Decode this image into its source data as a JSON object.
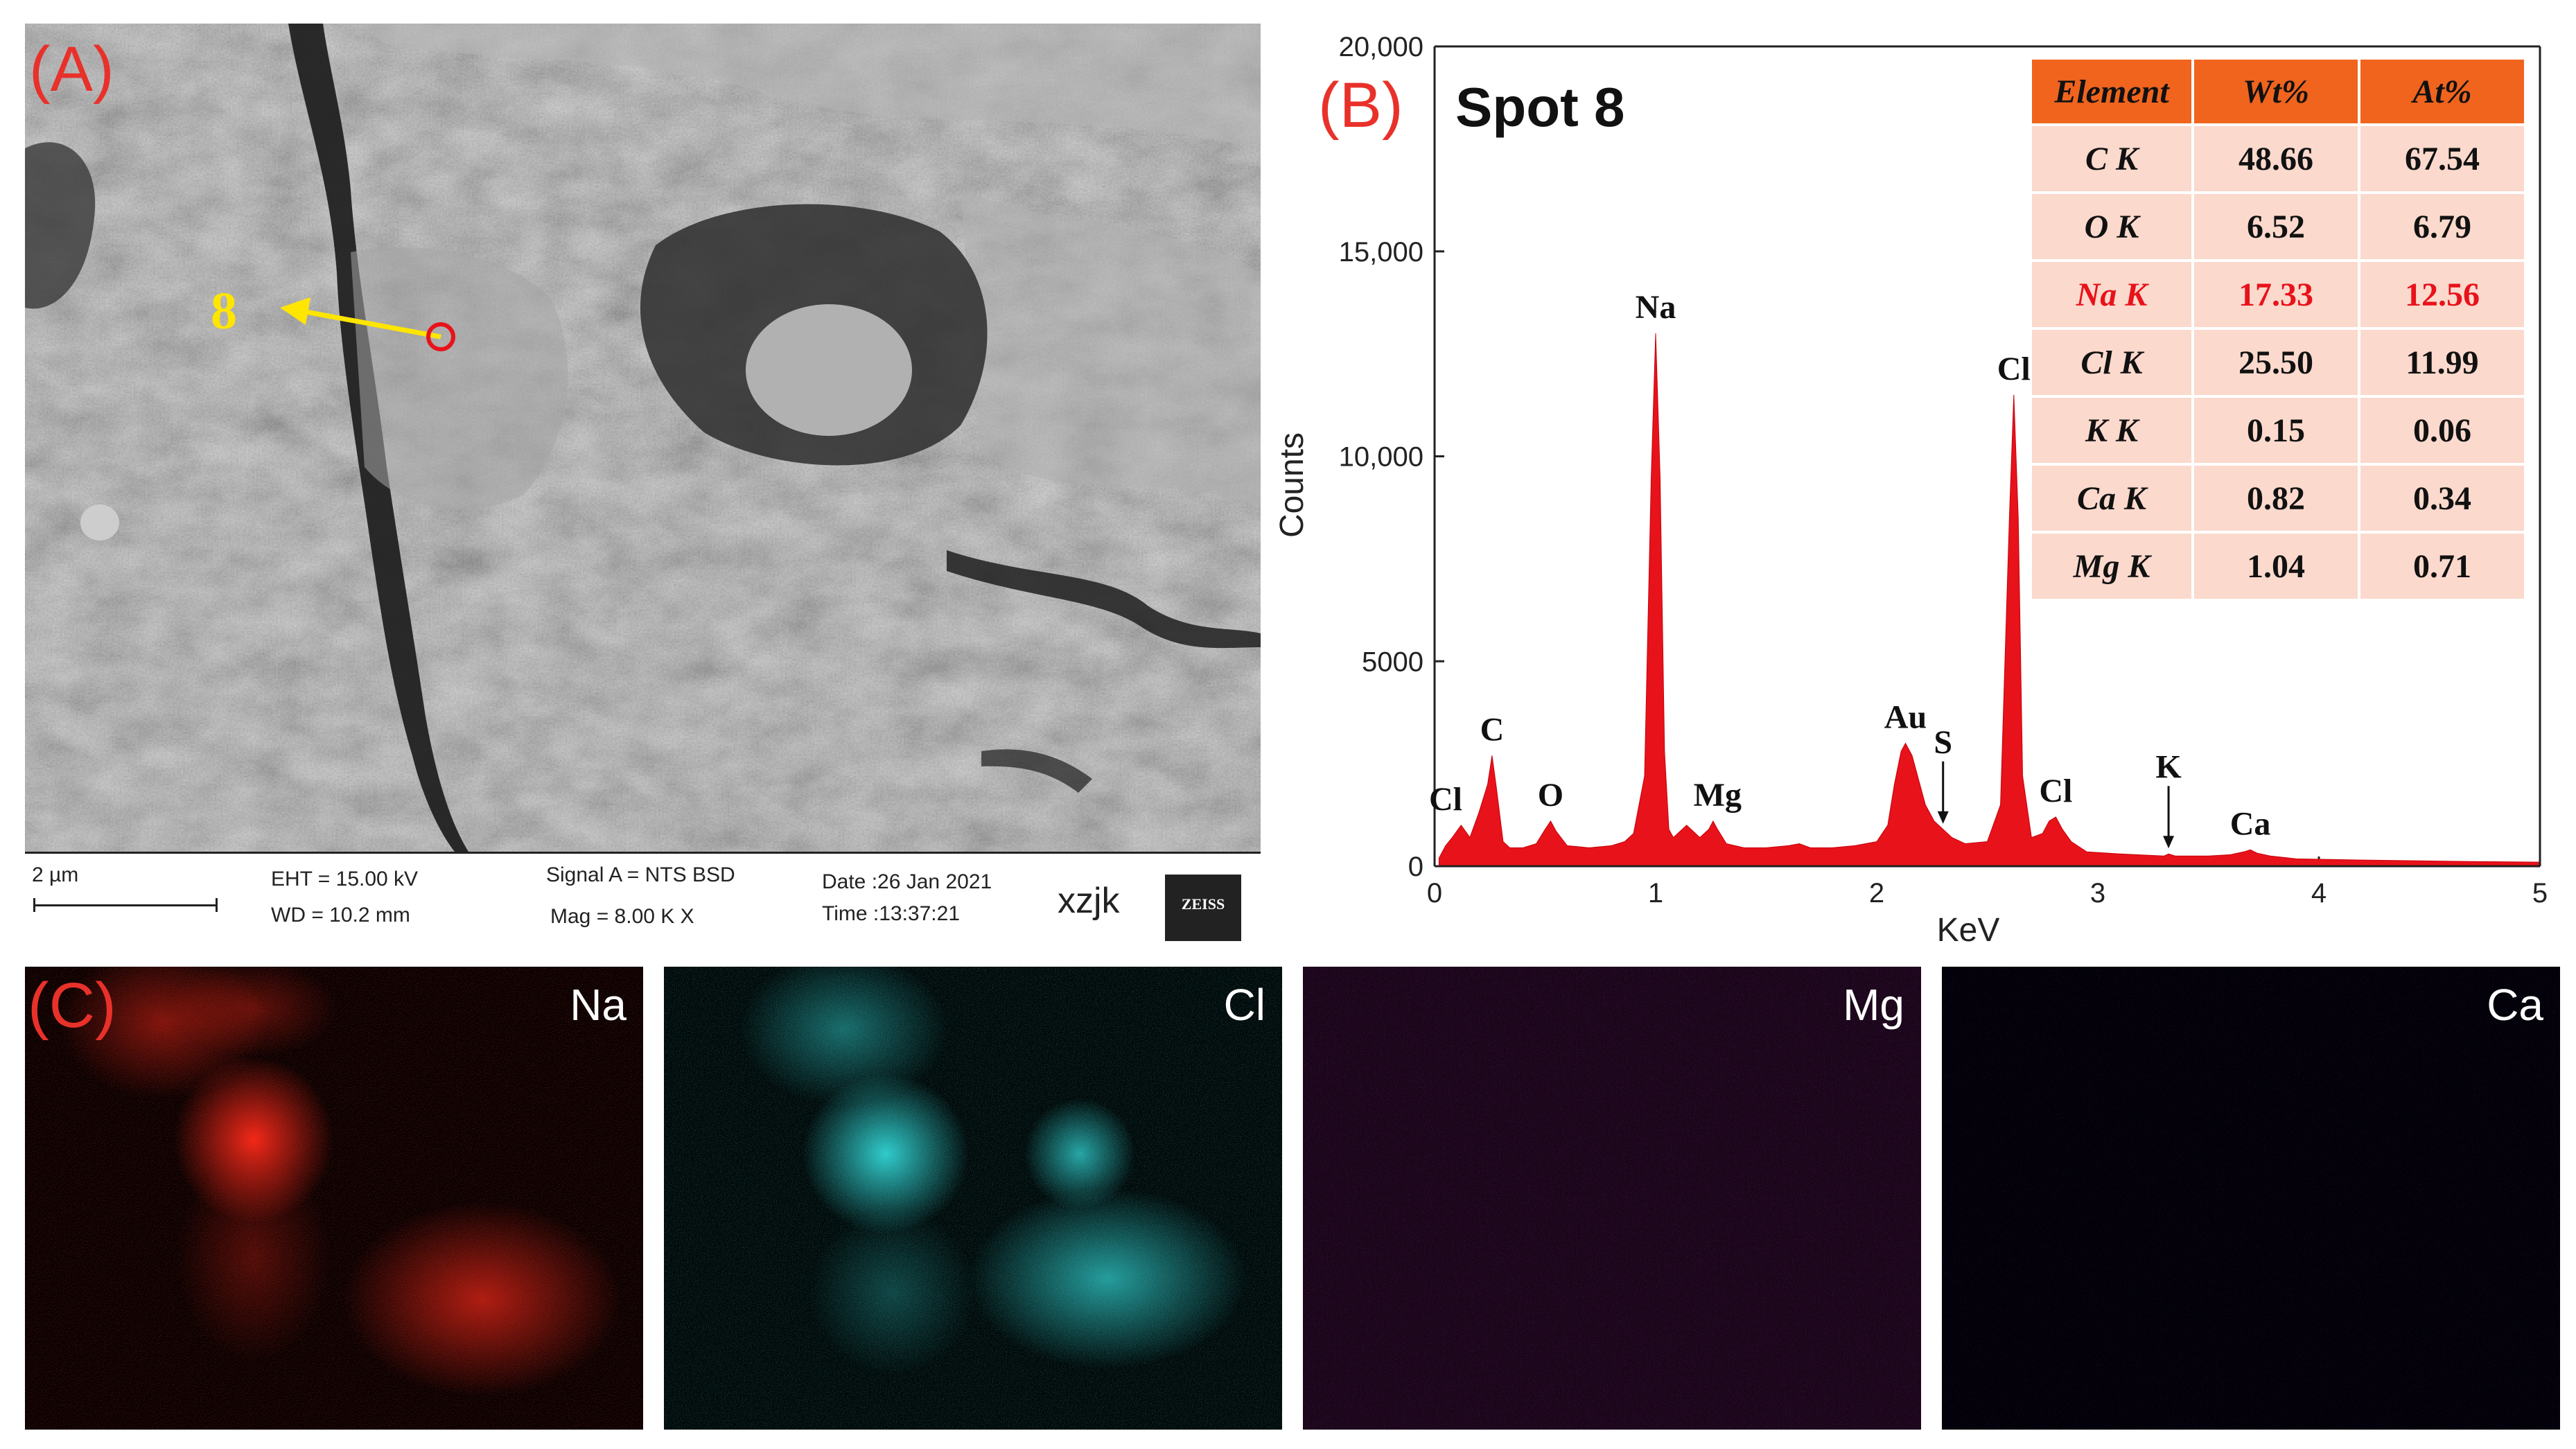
{
  "panel_labels": {
    "a": "(A)",
    "b": "(B)",
    "c": "(C)"
  },
  "sem": {
    "marker_label": "8",
    "scale_label": "2 µm",
    "eht": "EHT = 15.00 kV",
    "wd": "WD = 10.2 mm",
    "signal": "Signal A = NTS BSD",
    "mag": "Mag =    8.00 K X",
    "date": "Date :26 Jan 2021",
    "time": "Time :13:37:21",
    "operator": "xzjk",
    "logo": "ZEISS"
  },
  "chart_data": {
    "type": "area",
    "title": "Spot 8",
    "xlabel": "KeV",
    "ylabel": "Counts",
    "xlim": [
      0,
      5
    ],
    "ylim": [
      0,
      20000
    ],
    "x_ticks": [
      0,
      1,
      2,
      3,
      4,
      5
    ],
    "x_tick_labels": [
      "0",
      "1",
      "2",
      "3",
      "4",
      "5"
    ],
    "y_ticks": [
      0,
      5000,
      10000,
      15000,
      20000
    ],
    "y_tick_labels": [
      "0",
      "5000",
      "10,000",
      "15,000",
      "20,000"
    ],
    "color": "#e8121a",
    "series": [
      {
        "x": [
          0.02,
          0.05,
          0.08,
          0.12,
          0.16,
          0.2,
          0.24,
          0.26,
          0.28,
          0.31,
          0.34,
          0.4,
          0.46,
          0.5,
          0.525,
          0.55,
          0.6,
          0.7,
          0.8,
          0.86,
          0.9,
          0.95,
          0.98,
          1.0,
          1.02,
          1.04,
          1.06,
          1.08,
          1.1,
          1.14,
          1.2,
          1.24,
          1.26,
          1.28,
          1.32,
          1.4,
          1.5,
          1.6,
          1.65,
          1.7,
          1.8,
          1.9,
          2.0,
          2.05,
          2.08,
          2.11,
          2.13,
          2.16,
          2.19,
          2.22,
          2.26,
          2.3,
          2.34,
          2.4,
          2.5,
          2.56,
          2.6,
          2.62,
          2.64,
          2.66,
          2.7,
          2.75,
          2.78,
          2.81,
          2.84,
          2.88,
          2.95,
          3.1,
          3.3,
          3.32,
          3.35,
          3.5,
          3.6,
          3.66,
          3.69,
          3.72,
          3.78,
          3.9,
          4.2,
          4.6,
          5.0
        ],
        "y": [
          200,
          500,
          700,
          1000,
          700,
          1300,
          2000,
          2700,
          1900,
          600,
          450,
          450,
          550,
          900,
          1100,
          850,
          500,
          450,
          500,
          600,
          800,
          2200,
          9500,
          13000,
          9500,
          2800,
          900,
          700,
          800,
          1000,
          700,
          900,
          1100,
          900,
          550,
          450,
          450,
          500,
          550,
          450,
          450,
          500,
          600,
          1000,
          2000,
          2800,
          3000,
          2700,
          2100,
          1500,
          1100,
          900,
          700,
          550,
          600,
          1500,
          8500,
          11500,
          8500,
          2200,
          700,
          800,
          1100,
          1200,
          900,
          600,
          350,
          300,
          250,
          300,
          250,
          250,
          280,
          350,
          400,
          320,
          250,
          180,
          150,
          120,
          100
        ]
      }
    ],
    "peak_labels": [
      {
        "text": "Cl",
        "x": 0.05,
        "y": 1000
      },
      {
        "text": "C",
        "x": 0.26,
        "y": 2700
      },
      {
        "text": "O",
        "x": 0.525,
        "y": 1100
      },
      {
        "text": "Na",
        "x": 1.0,
        "y": 13000
      },
      {
        "text": "Mg",
        "x": 1.28,
        "y": 1100
      },
      {
        "text": "Au",
        "x": 2.13,
        "y": 3000
      },
      {
        "text": "S",
        "x": 2.3,
        "y": 900
      },
      {
        "text": "Cl",
        "x": 2.62,
        "y": 11500
      },
      {
        "text": "Cl",
        "x": 2.81,
        "y": 1200
      },
      {
        "text": "K",
        "x": 3.32,
        "y": 300
      },
      {
        "text": "Ca",
        "x": 3.69,
        "y": 400
      }
    ],
    "table": {
      "headers": [
        "Element",
        "Wt%",
        "At%"
      ],
      "rows": [
        [
          "C K",
          "48.66",
          "67.54"
        ],
        [
          "O K",
          "6.52",
          "6.79"
        ],
        [
          "Na K",
          "17.33",
          "12.56"
        ],
        [
          "Cl K",
          "25.50",
          "11.99"
        ],
        [
          "K K",
          "0.15",
          "0.06"
        ],
        [
          "Ca K",
          "0.82",
          "0.34"
        ],
        [
          "Mg K",
          "1.04",
          "0.71"
        ]
      ],
      "highlight_row": 2
    }
  },
  "maps": [
    {
      "label": "Na",
      "color": "#ff2a1a"
    },
    {
      "label": "Cl",
      "color": "#35e0e0"
    },
    {
      "label": "Mg",
      "color": "#c828c8"
    },
    {
      "label": "Ca",
      "color": "#6a28e0"
    }
  ]
}
